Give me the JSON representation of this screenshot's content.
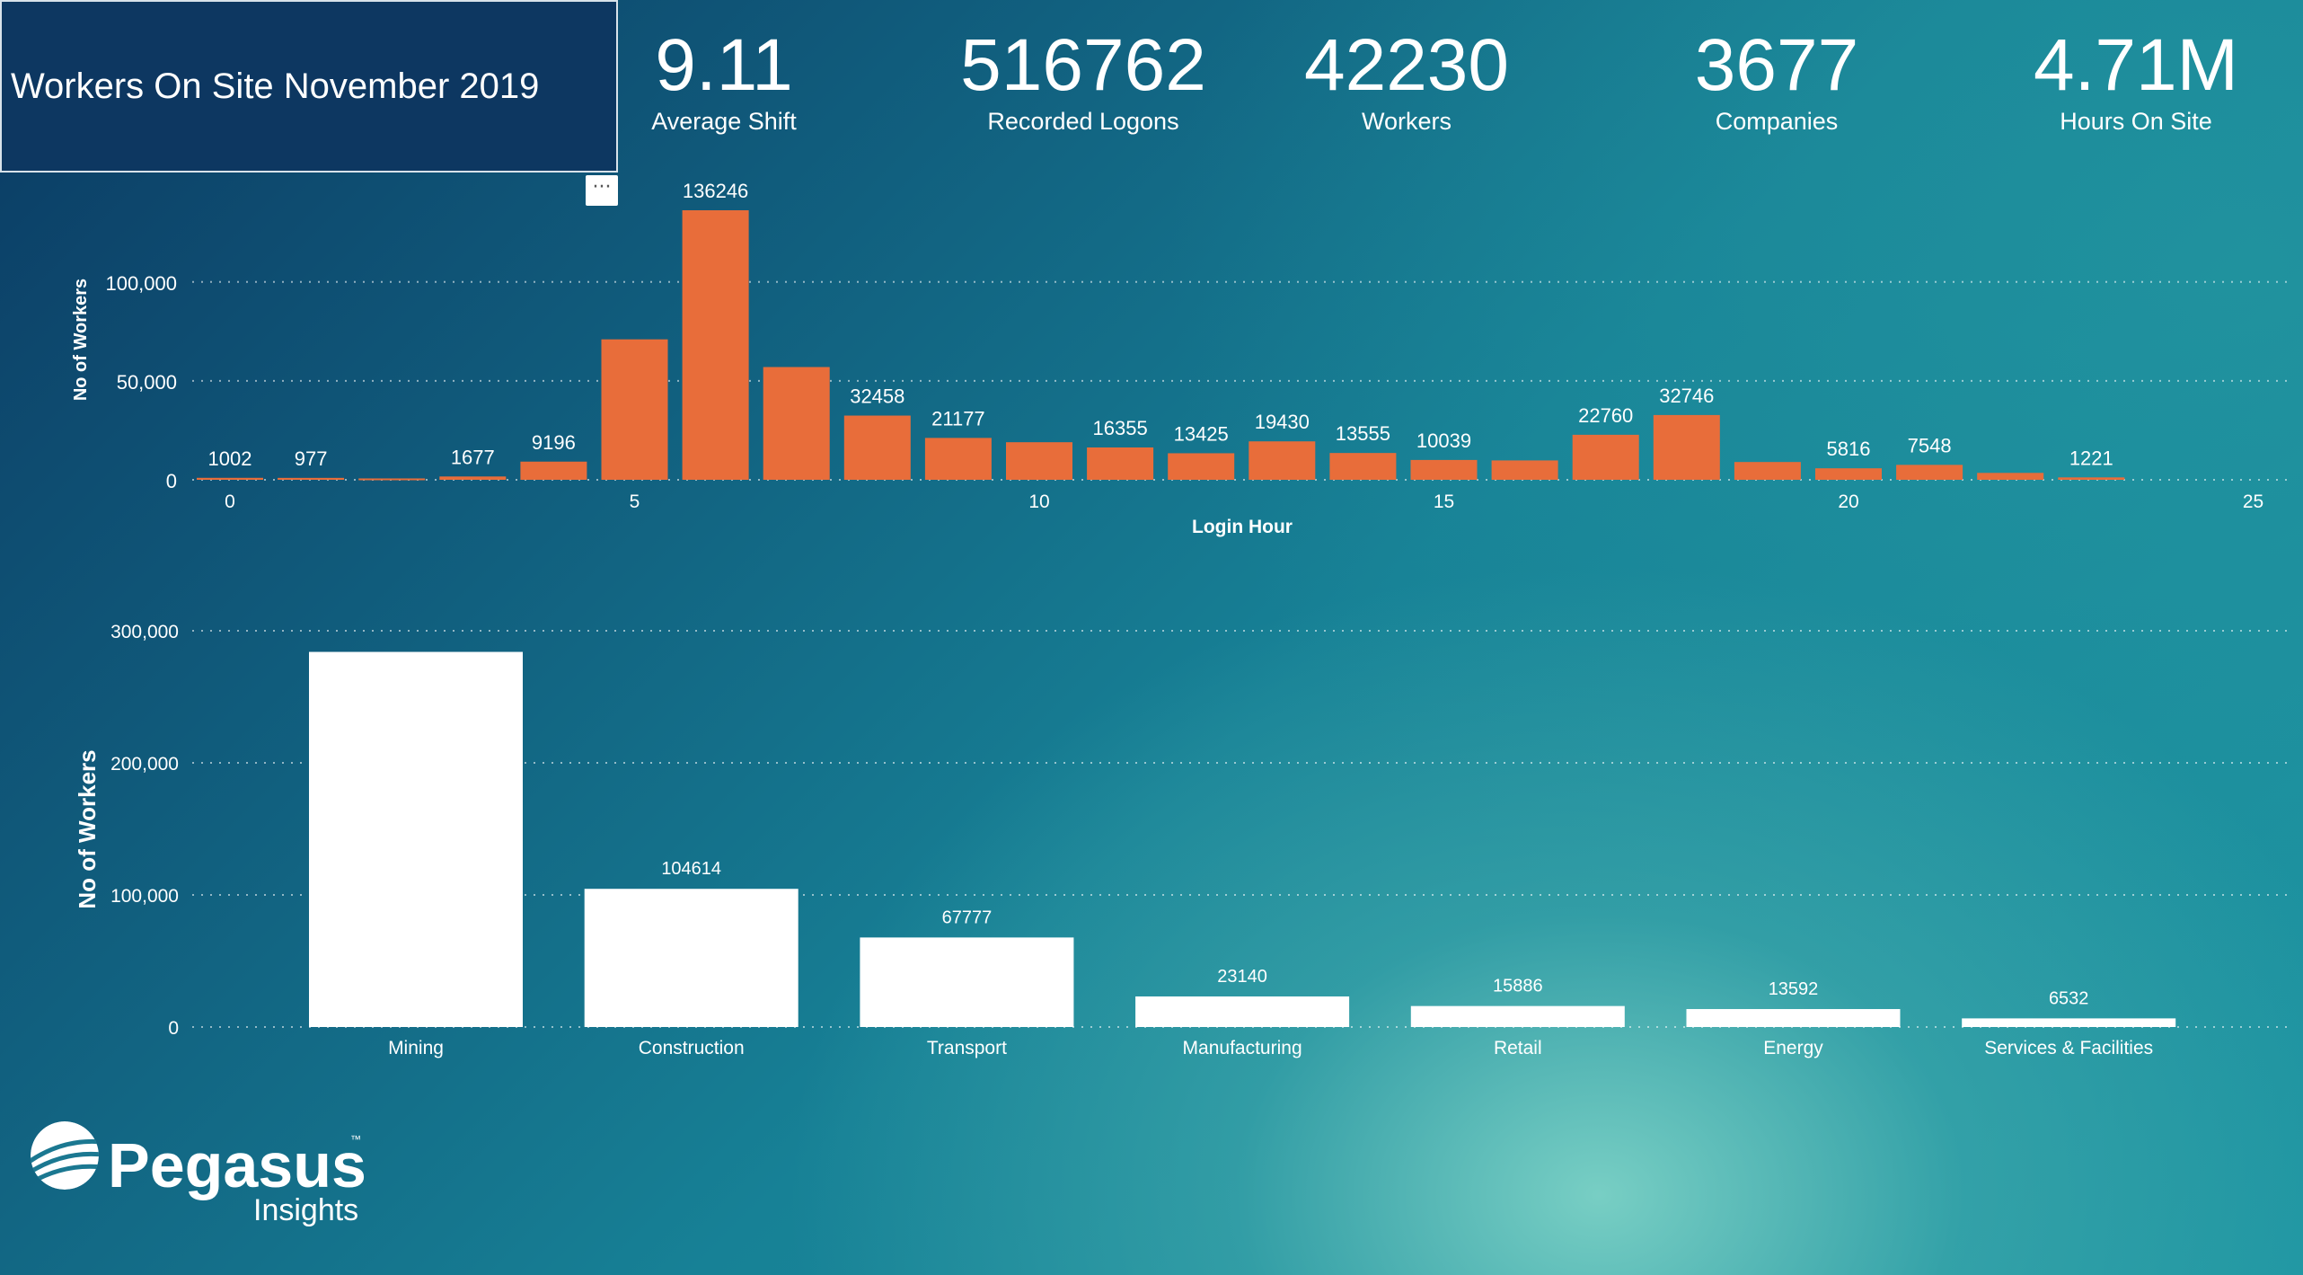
{
  "title": "Workers On Site November 2019",
  "more_glyph": "···",
  "kpis": [
    {
      "value": "9.11",
      "label": "Average Shift"
    },
    {
      "value": "516762",
      "label": "Recorded Logons"
    },
    {
      "value": "42230",
      "label": "Workers"
    },
    {
      "value": "3677",
      "label": "Companies"
    },
    {
      "value": "4.71M",
      "label": "Hours On Site"
    }
  ],
  "logo": {
    "name": "Pegasus",
    "sub": "Insights",
    "tm": "™"
  },
  "colors": {
    "orange_bar": "#e86d3a",
    "white_bar": "#ffffff"
  },
  "chart_data": [
    {
      "type": "bar",
      "xlabel": "Login Hour",
      "ylabel": "No of Workers",
      "xlim": [
        0,
        25
      ],
      "ylim": [
        0,
        136246
      ],
      "xticks": [
        0,
        5,
        10,
        15,
        20,
        25
      ],
      "xtick_labels": [
        "0",
        "5",
        "10",
        "15",
        "20",
        "25"
      ],
      "yticks": [
        0,
        50000,
        100000
      ],
      "ytick_labels": [
        "0",
        "50,000",
        "100,000"
      ],
      "grid": true,
      "x": [
        0,
        1,
        2,
        3,
        4,
        5,
        6,
        7,
        8,
        9,
        10,
        11,
        12,
        13,
        14,
        15,
        16,
        17,
        18,
        19,
        20,
        21,
        22,
        23
      ],
      "values": [
        1002,
        977,
        700,
        1677,
        9196,
        71000,
        136246,
        57000,
        32458,
        21177,
        19000,
        16355,
        13425,
        19430,
        13555,
        10039,
        9800,
        22760,
        32746,
        9000,
        5816,
        7548,
        3500,
        1221
      ],
      "data_labels": [
        "1002",
        "977",
        "",
        "1677",
        "9196",
        "",
        "136246",
        "",
        "32458",
        "21177",
        "",
        "16355",
        "13425",
        "19430",
        "13555",
        "10039",
        "",
        "22760",
        "32746",
        "",
        "5816",
        "7548",
        "",
        "1221"
      ]
    },
    {
      "type": "bar",
      "xlabel": "",
      "ylabel": "No of Workers",
      "ylim": [
        0,
        300000
      ],
      "yticks": [
        0,
        100000,
        200000,
        300000
      ],
      "ytick_labels": [
        "0",
        "100,000",
        "200,000",
        "300,000"
      ],
      "grid": true,
      "categories": [
        "Mining",
        "Construction",
        "Transport",
        "Manufacturing",
        "Retail",
        "Energy",
        "Services & Facilities"
      ],
      "values": [
        284000,
        104614,
        67777,
        23140,
        15886,
        13592,
        6532
      ],
      "data_labels": [
        "",
        "104614",
        "67777",
        "23140",
        "15886",
        "13592",
        "6532"
      ]
    }
  ]
}
